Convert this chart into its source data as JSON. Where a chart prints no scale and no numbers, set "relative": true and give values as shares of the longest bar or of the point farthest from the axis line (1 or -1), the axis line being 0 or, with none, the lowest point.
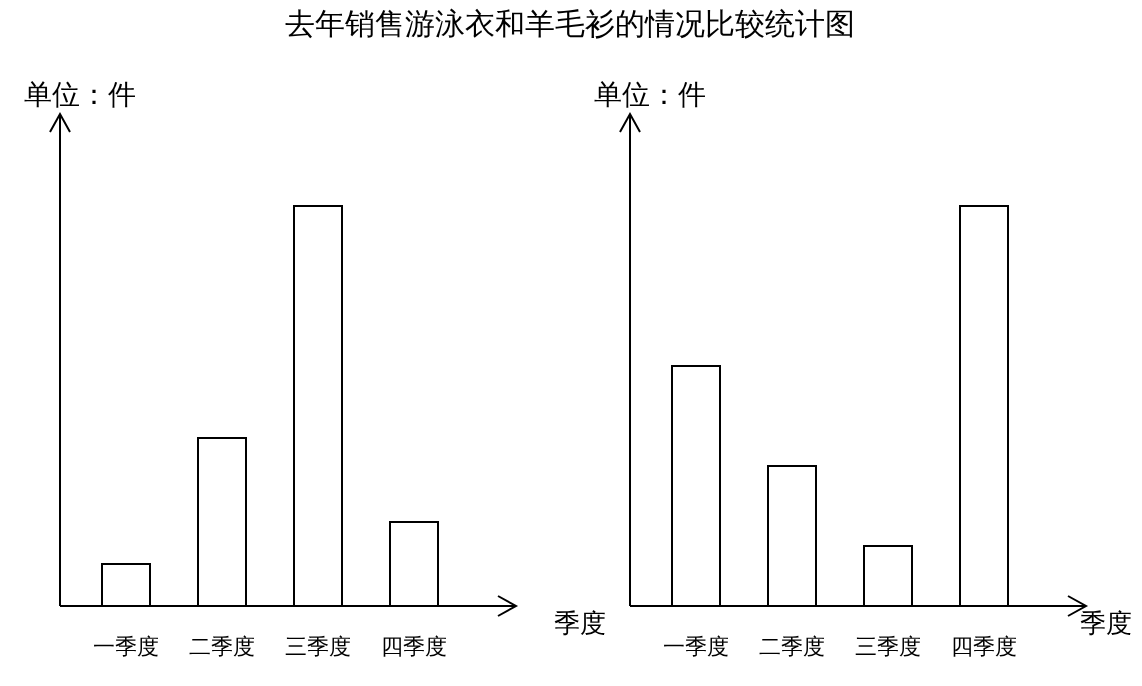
{
  "chart_data": [
    {
      "type": "bar",
      "title": "去年销售游泳衣和羊毛衫的情况比较统计图",
      "ylabel": "单位：件",
      "xlabel": "季度",
      "relative": true,
      "color": "#ffffff",
      "categories": [
        "一季度",
        "二季度",
        "三季度",
        "四季度"
      ],
      "values": [
        0.105,
        0.42,
        1,
        0.21
      ]
    },
    {
      "type": "bar",
      "ylabel": "单位：件",
      "xlabel": "季度",
      "relative": true,
      "color": "#ffffff",
      "categories": [
        "一季度",
        "二季度",
        "三季度",
        "四季度"
      ],
      "values": [
        0.6,
        0.35,
        0.15,
        1
      ]
    }
  ]
}
